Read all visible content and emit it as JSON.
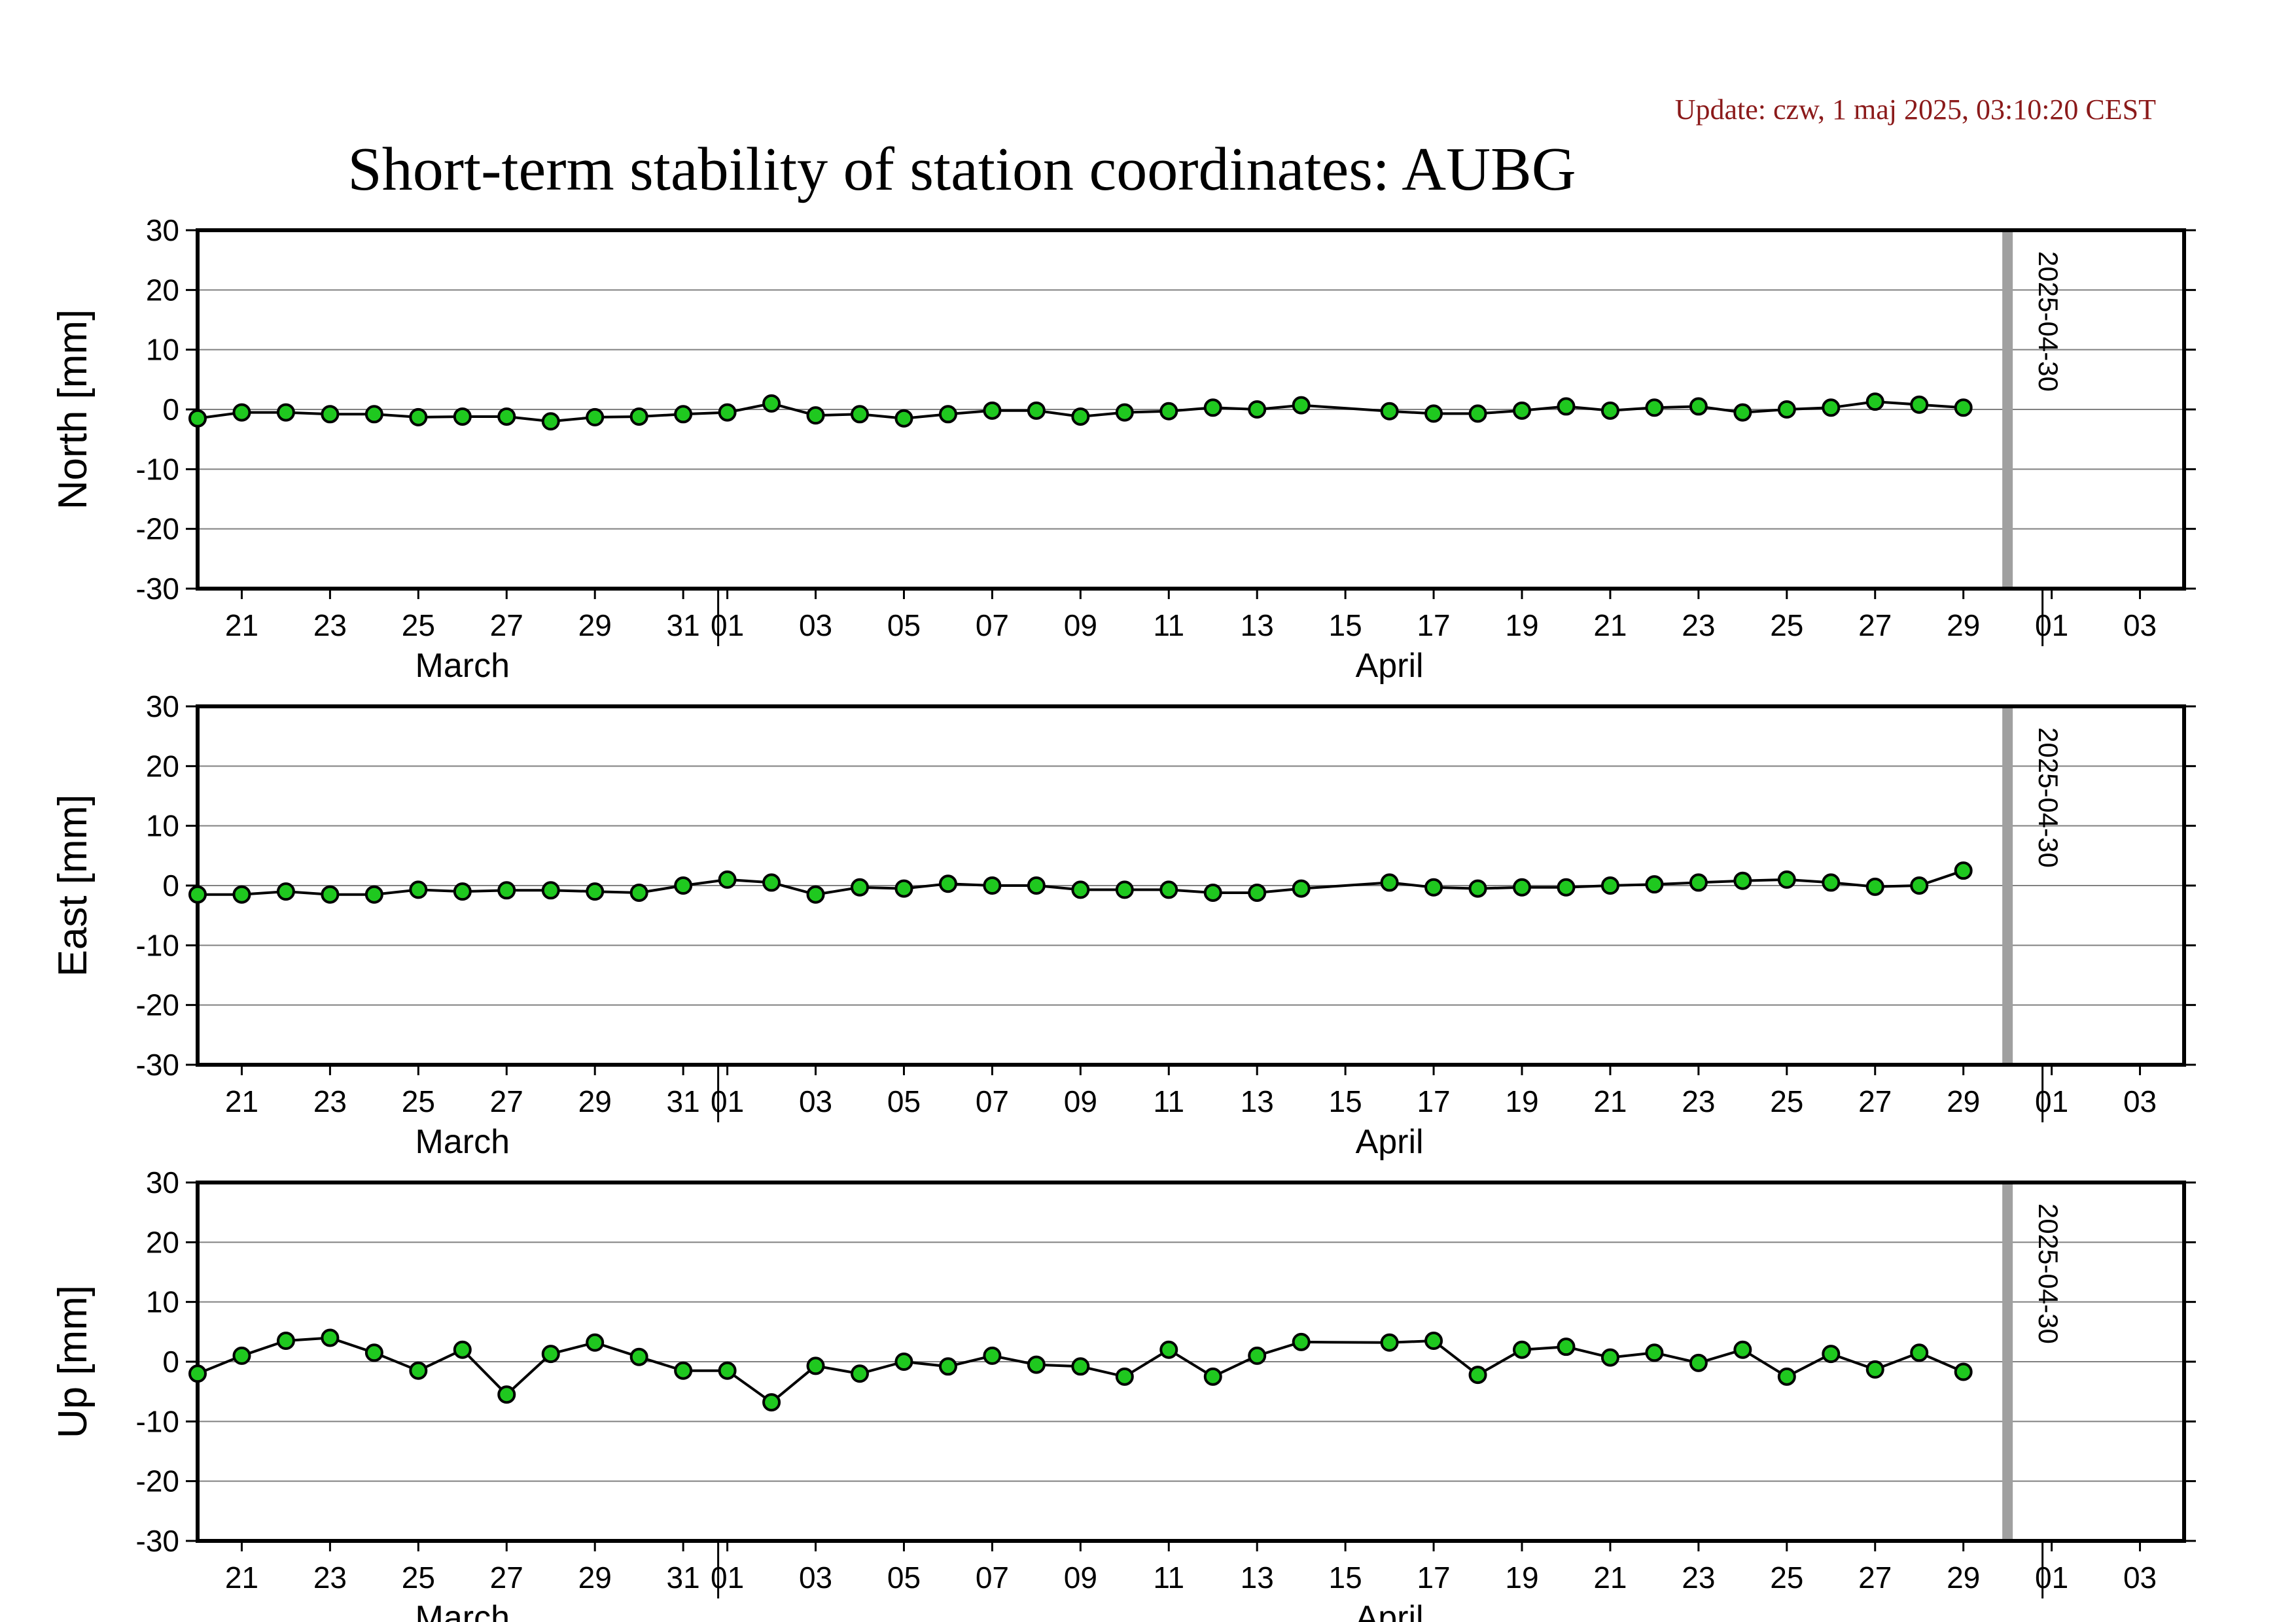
{
  "update_text": "Update: czw, 1 maj 2025, 03:10:20 CEST",
  "title": "Short-term stability of station coordinates: AUBG",
  "colors": {
    "update": "#8b1a1a",
    "marker_fill": "#1fc81f",
    "marker_edge": "#000000",
    "line": "#000000",
    "gridline": "#808080",
    "current_day_bar": "#a0a0a0"
  },
  "chart_data": [
    {
      "type": "line",
      "ylabel": "North [mm]",
      "ylim": [
        -30,
        30
      ],
      "yticks": [
        -30,
        -20,
        -10,
        0,
        10,
        20,
        30
      ],
      "xlim": [
        "2025-03-20",
        "2025-05-04"
      ],
      "xtick_dates": [
        "2025-03-21",
        "2025-03-23",
        "2025-03-25",
        "2025-03-27",
        "2025-03-29",
        "2025-03-31",
        "2025-04-01",
        "2025-04-03",
        "2025-04-05",
        "2025-04-07",
        "2025-04-09",
        "2025-04-11",
        "2025-04-13",
        "2025-04-15",
        "2025-04-17",
        "2025-04-19",
        "2025-04-21",
        "2025-04-23",
        "2025-04-25",
        "2025-04-27",
        "2025-04-29",
        "2025-05-01",
        "2025-05-03"
      ],
      "xtick_labels": [
        "21",
        "23",
        "25",
        "27",
        "29",
        "31",
        "01",
        "03",
        "05",
        "07",
        "09",
        "11",
        "13",
        "15",
        "17",
        "19",
        "21",
        "23",
        "25",
        "27",
        "29",
        "01",
        "03"
      ],
      "month_labels": [
        {
          "date": "2025-03-26",
          "text": "March"
        },
        {
          "date": "2025-04-16",
          "text": "April"
        }
      ],
      "month_boundaries": [
        "2025-04-01",
        "2025-05-01"
      ],
      "marker_date": "2025-04-30",
      "marker_label": "2025-04-30",
      "grid": "horizontal",
      "series": [
        {
          "x": [
            "2025-03-20",
            "2025-03-21",
            "2025-03-22",
            "2025-03-23",
            "2025-03-24",
            "2025-03-25",
            "2025-03-26",
            "2025-03-27",
            "2025-03-28",
            "2025-03-29",
            "2025-03-30",
            "2025-03-31",
            "2025-04-01",
            "2025-04-02",
            "2025-04-03",
            "2025-04-04",
            "2025-04-05",
            "2025-04-06",
            "2025-04-07",
            "2025-04-08",
            "2025-04-09",
            "2025-04-10",
            "2025-04-11",
            "2025-04-12",
            "2025-04-13",
            "2025-04-14",
            "2025-04-16",
            "2025-04-17",
            "2025-04-18",
            "2025-04-19",
            "2025-04-20",
            "2025-04-21",
            "2025-04-22",
            "2025-04-23",
            "2025-04-24",
            "2025-04-25",
            "2025-04-26",
            "2025-04-27",
            "2025-04-28",
            "2025-04-29"
          ],
          "values": [
            -1.5,
            -0.5,
            -0.5,
            -0.8,
            -0.8,
            -1.3,
            -1.2,
            -1.2,
            -2.0,
            -1.3,
            -1.2,
            -0.8,
            -0.5,
            1.0,
            -1.0,
            -0.8,
            -1.5,
            -0.8,
            -0.2,
            -0.2,
            -1.2,
            -0.5,
            -0.3,
            0.3,
            0.0,
            0.7,
            -0.3,
            -0.7,
            -0.7,
            -0.2,
            0.5,
            -0.2,
            0.3,
            0.5,
            -0.5,
            0.0,
            0.3,
            1.3,
            0.8,
            0.3
          ]
        }
      ]
    },
    {
      "type": "line",
      "ylabel": "East [mm]",
      "ylim": [
        -30,
        30
      ],
      "yticks": [
        -30,
        -20,
        -10,
        0,
        10,
        20,
        30
      ],
      "xlim": [
        "2025-03-20",
        "2025-05-04"
      ],
      "xtick_dates": [
        "2025-03-21",
        "2025-03-23",
        "2025-03-25",
        "2025-03-27",
        "2025-03-29",
        "2025-03-31",
        "2025-04-01",
        "2025-04-03",
        "2025-04-05",
        "2025-04-07",
        "2025-04-09",
        "2025-04-11",
        "2025-04-13",
        "2025-04-15",
        "2025-04-17",
        "2025-04-19",
        "2025-04-21",
        "2025-04-23",
        "2025-04-25",
        "2025-04-27",
        "2025-04-29",
        "2025-05-01",
        "2025-05-03"
      ],
      "xtick_labels": [
        "21",
        "23",
        "25",
        "27",
        "29",
        "31",
        "01",
        "03",
        "05",
        "07",
        "09",
        "11",
        "13",
        "15",
        "17",
        "19",
        "21",
        "23",
        "25",
        "27",
        "29",
        "01",
        "03"
      ],
      "month_labels": [
        {
          "date": "2025-03-26",
          "text": "March"
        },
        {
          "date": "2025-04-16",
          "text": "April"
        }
      ],
      "month_boundaries": [
        "2025-04-01",
        "2025-05-01"
      ],
      "marker_date": "2025-04-30",
      "marker_label": "2025-04-30",
      "grid": "horizontal",
      "series": [
        {
          "x": [
            "2025-03-20",
            "2025-03-21",
            "2025-03-22",
            "2025-03-23",
            "2025-03-24",
            "2025-03-25",
            "2025-03-26",
            "2025-03-27",
            "2025-03-28",
            "2025-03-29",
            "2025-03-30",
            "2025-03-31",
            "2025-04-01",
            "2025-04-02",
            "2025-04-03",
            "2025-04-04",
            "2025-04-05",
            "2025-04-06",
            "2025-04-07",
            "2025-04-08",
            "2025-04-09",
            "2025-04-10",
            "2025-04-11",
            "2025-04-12",
            "2025-04-13",
            "2025-04-14",
            "2025-04-16",
            "2025-04-17",
            "2025-04-18",
            "2025-04-19",
            "2025-04-20",
            "2025-04-21",
            "2025-04-22",
            "2025-04-23",
            "2025-04-24",
            "2025-04-25",
            "2025-04-26",
            "2025-04-27",
            "2025-04-28",
            "2025-04-29"
          ],
          "values": [
            -1.5,
            -1.5,
            -1.0,
            -1.5,
            -1.5,
            -0.7,
            -1.0,
            -0.8,
            -0.8,
            -1.0,
            -1.2,
            0.0,
            1.0,
            0.5,
            -1.5,
            -0.3,
            -0.5,
            0.3,
            0.0,
            0.0,
            -0.7,
            -0.7,
            -0.7,
            -1.2,
            -1.2,
            -0.5,
            0.5,
            -0.3,
            -0.5,
            -0.3,
            -0.3,
            0.0,
            0.2,
            0.5,
            0.8,
            1.0,
            0.5,
            -0.2,
            0.0,
            2.5
          ]
        }
      ]
    },
    {
      "type": "line",
      "ylabel": "Up [mm]",
      "ylim": [
        -30,
        30
      ],
      "yticks": [
        -30,
        -20,
        -10,
        0,
        10,
        20,
        30
      ],
      "xlim": [
        "2025-03-20",
        "2025-05-04"
      ],
      "xtick_dates": [
        "2025-03-21",
        "2025-03-23",
        "2025-03-25",
        "2025-03-27",
        "2025-03-29",
        "2025-03-31",
        "2025-04-01",
        "2025-04-03",
        "2025-04-05",
        "2025-04-07",
        "2025-04-09",
        "2025-04-11",
        "2025-04-13",
        "2025-04-15",
        "2025-04-17",
        "2025-04-19",
        "2025-04-21",
        "2025-04-23",
        "2025-04-25",
        "2025-04-27",
        "2025-04-29",
        "2025-05-01",
        "2025-05-03"
      ],
      "xtick_labels": [
        "21",
        "23",
        "25",
        "27",
        "29",
        "31",
        "01",
        "03",
        "05",
        "07",
        "09",
        "11",
        "13",
        "15",
        "17",
        "19",
        "21",
        "23",
        "25",
        "27",
        "29",
        "01",
        "03"
      ],
      "month_labels": [
        {
          "date": "2025-03-26",
          "text": "March"
        },
        {
          "date": "2025-04-16",
          "text": "April"
        }
      ],
      "month_boundaries": [
        "2025-04-01",
        "2025-05-01"
      ],
      "marker_date": "2025-04-30",
      "marker_label": "2025-04-30",
      "grid": "horizontal",
      "series": [
        {
          "x": [
            "2025-03-20",
            "2025-03-21",
            "2025-03-22",
            "2025-03-23",
            "2025-03-24",
            "2025-03-25",
            "2025-03-26",
            "2025-03-27",
            "2025-03-28",
            "2025-03-29",
            "2025-03-30",
            "2025-03-31",
            "2025-04-01",
            "2025-04-02",
            "2025-04-03",
            "2025-04-04",
            "2025-04-05",
            "2025-04-06",
            "2025-04-07",
            "2025-04-08",
            "2025-04-09",
            "2025-04-10",
            "2025-04-11",
            "2025-04-12",
            "2025-04-13",
            "2025-04-14",
            "2025-04-16",
            "2025-04-17",
            "2025-04-18",
            "2025-04-19",
            "2025-04-20",
            "2025-04-21",
            "2025-04-22",
            "2025-04-23",
            "2025-04-24",
            "2025-04-25",
            "2025-04-26",
            "2025-04-27",
            "2025-04-28",
            "2025-04-29"
          ],
          "values": [
            -2.0,
            1.0,
            3.5,
            4.0,
            1.5,
            -1.5,
            2.0,
            -5.5,
            1.3,
            3.2,
            0.8,
            -1.5,
            -1.5,
            -6.8,
            -0.7,
            -2.0,
            0.0,
            -0.8,
            1.0,
            -0.5,
            -0.8,
            -2.5,
            2.0,
            -2.5,
            1.0,
            3.3,
            3.2,
            3.5,
            -2.2,
            2.0,
            2.5,
            0.7,
            1.5,
            -0.2,
            2.0,
            -2.5,
            1.3,
            -1.3,
            1.5,
            -1.7
          ]
        }
      ]
    }
  ]
}
